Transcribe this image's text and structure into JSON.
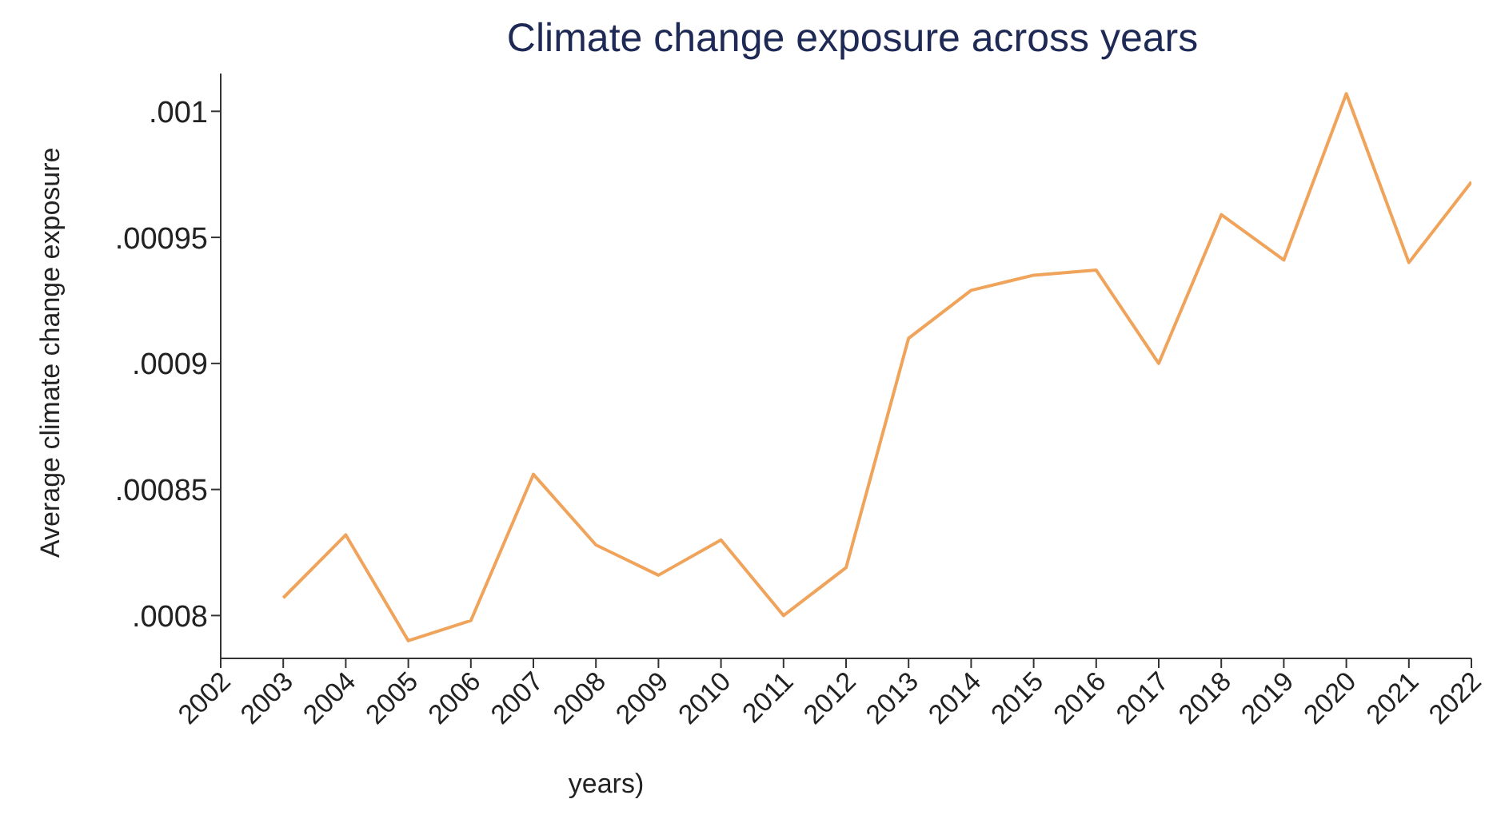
{
  "chart_data": {
    "type": "line",
    "title": "Climate change exposure across years",
    "xlabel": "years)",
    "ylabel": "Average climate change exposure",
    "x": [
      2003,
      2004,
      2005,
      2006,
      2007,
      2008,
      2009,
      2010,
      2011,
      2012,
      2013,
      2014,
      2015,
      2016,
      2017,
      2018,
      2019,
      2020,
      2021,
      2022
    ],
    "series": [
      {
        "color": "#f0a35a",
        "values": [
          0.000807,
          0.000832,
          0.00079,
          0.000798,
          0.000856,
          0.000828,
          0.000816,
          0.00083,
          0.0008,
          0.000819,
          0.00091,
          0.000929,
          0.000935,
          0.000937,
          0.0009,
          0.000959,
          0.000941,
          0.001007,
          0.00094,
          0.000972
        ]
      }
    ],
    "xlim": [
      2002,
      2022
    ],
    "xticks": [
      2002,
      2003,
      2004,
      2005,
      2006,
      2007,
      2008,
      2009,
      2010,
      2011,
      2012,
      2013,
      2014,
      2015,
      2016,
      2017,
      2018,
      2019,
      2020,
      2021,
      2022
    ],
    "ylim": [
      0.000783,
      0.001015
    ],
    "yticks": [
      {
        "value": 0.0008,
        "label": ".0008"
      },
      {
        "value": 0.00085,
        "label": ".00085"
      },
      {
        "value": 0.0009,
        "label": ".0009"
      },
      {
        "value": 0.00095,
        "label": ".00095"
      },
      {
        "value": 0.001,
        "label": ".001"
      }
    ],
    "grid": false,
    "legend": false,
    "marker": "none",
    "line_style": "solid"
  }
}
